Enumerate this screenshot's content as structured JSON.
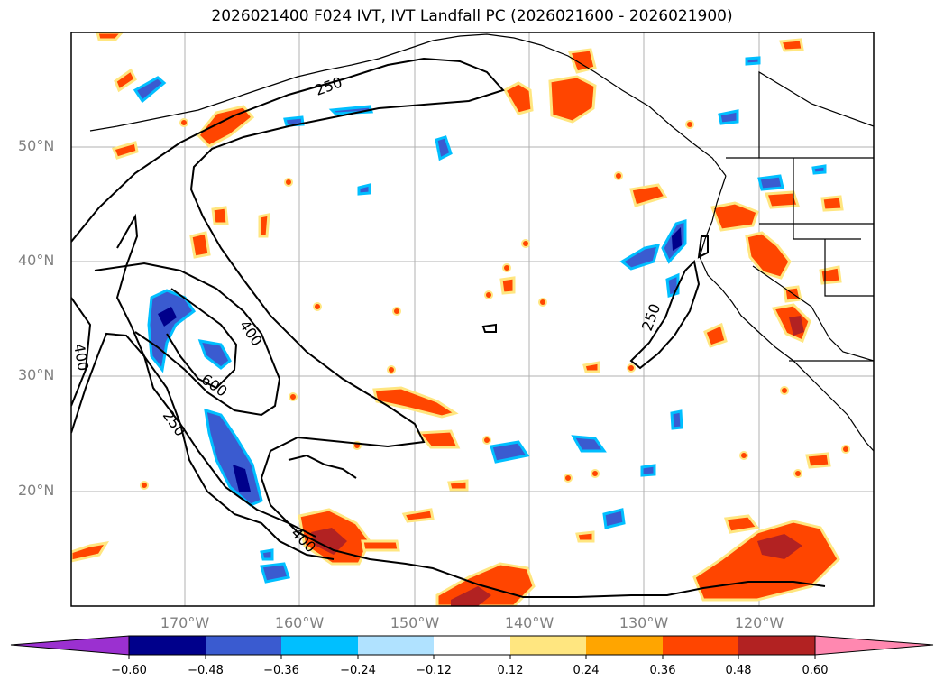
{
  "title": "2026021400 F024 IVT, IVT Landfall PC (2026021600 - 2026021900)",
  "lat_labels": [
    "50°N",
    "40°N",
    "30°N",
    "20°N"
  ],
  "lon_labels": [
    "170°W",
    "160°W",
    "150°W",
    "140°W",
    "130°W",
    "120°W"
  ],
  "contour_labels": [
    "250",
    "250",
    "400",
    "400",
    "600",
    "250",
    "400"
  ],
  "colorbar": {
    "ticks": [
      "−0.60",
      "−0.48",
      "−0.36",
      "−0.24",
      "−0.12",
      "0.12",
      "0.24",
      "0.36",
      "0.48",
      "0.60"
    ],
    "colors": [
      "#9b30d0",
      "#00008b",
      "#3a5bd0",
      "#00bfff",
      "#b0e2ff",
      "#ffffff",
      "#ffe680",
      "#ffa500",
      "#ff4500",
      "#b22222",
      "#ff88b0"
    ]
  },
  "fill_colors": {
    "neg_light": "#00bfff",
    "neg_mid": "#3a5bd0",
    "neg_dark": "#00008b",
    "pos_light": "#ffa500",
    "pos_mid": "#ff4500",
    "pos_dark": "#b22222",
    "pos_edge": "#ffe680"
  }
}
